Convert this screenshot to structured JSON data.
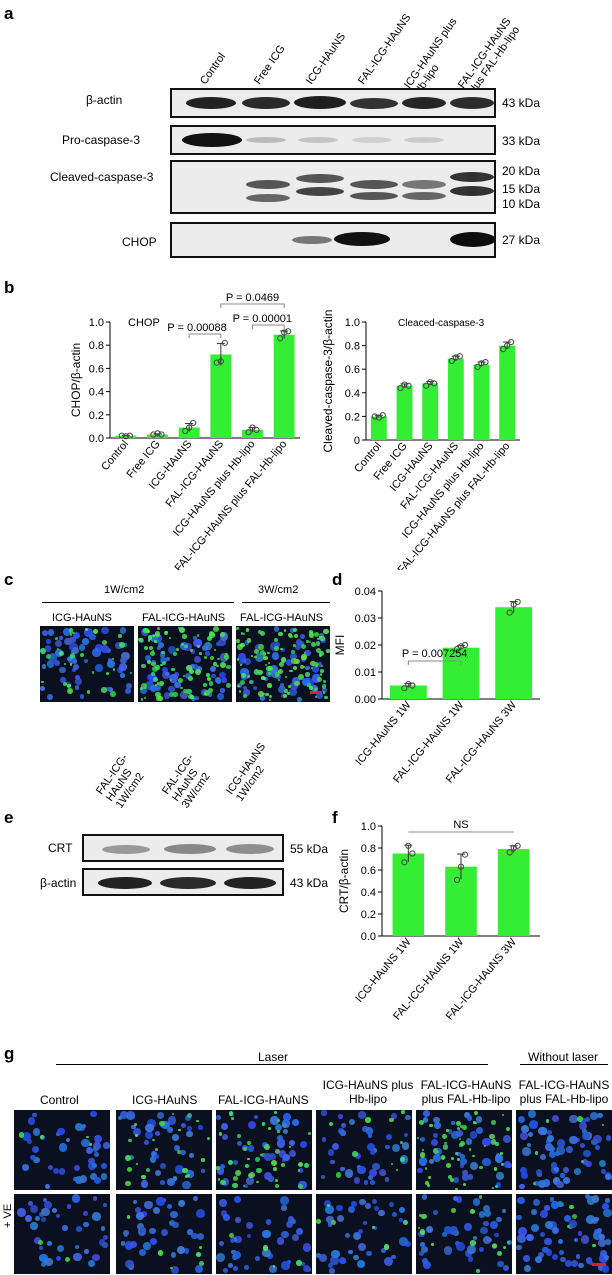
{
  "panel_labels": {
    "a": "a",
    "b": "b",
    "c": "c",
    "d": "d",
    "e": "e",
    "f": "f",
    "g": "g"
  },
  "panel_a": {
    "lanes": [
      "Control",
      "Free ICG",
      "ICG-HAuNS",
      "FAL-ICG-HAuNS",
      "ICG-HAuNS plus Hb-lipo",
      "FAL-ICG-HAuNS plus FAL-Hb-lipo"
    ],
    "rows": [
      {
        "name": "β-actin",
        "kda": [
          "43 kDa"
        ]
      },
      {
        "name": "Pro-caspase-3",
        "kda": [
          "33 kDa"
        ]
      },
      {
        "name": "Cleaved-caspase-3",
        "kda": [
          "20 kDa",
          "15 kDa",
          "10 kDa"
        ]
      },
      {
        "name": "CHOP",
        "kda": [
          "27 kDa"
        ]
      }
    ]
  },
  "chart_data": [
    {
      "id": "b-left",
      "type": "bar",
      "annotation": "CHOP",
      "categories": [
        "Control",
        "Free ICG",
        "ICG-HAuNS",
        "FAL-ICG-HAuNS",
        "ICG-HAuNS plus Hb-lipo",
        "FAL-ICG-HAuNS plus FAL-Hb-lipo"
      ],
      "values": [
        0.02,
        0.03,
        0.09,
        0.72,
        0.07,
        0.89
      ],
      "points": [
        [
          0.02,
          0.015,
          0.02
        ],
        [
          0.03,
          0.04,
          0.03
        ],
        [
          0.06,
          0.09,
          0.13
        ],
        [
          0.65,
          0.66,
          0.82
        ],
        [
          0.05,
          0.09,
          0.07
        ],
        [
          0.86,
          0.91,
          0.92
        ]
      ],
      "ylabel": "CHOP/β-actin",
      "ylim": [
        0,
        1.0
      ],
      "yticks": [
        "0.0",
        "0.2",
        "0.4",
        "0.6",
        "0.8",
        "1.0"
      ],
      "pvalues": [
        "P = 0.00088",
        "P = 0.00001",
        "P = 0.0469"
      ],
      "color": "#33ee33"
    },
    {
      "id": "b-right",
      "type": "bar",
      "annotation": "Cleaced-caspase-3",
      "categories": [
        "Control",
        "Free ICG",
        "ICG-HAuNS",
        "FAL-ICG-HAuNS",
        "ICG-HAuNS plus Hb-lipo",
        "FAL-ICG-HAuNS plus FAL-Hb-lipo"
      ],
      "values": [
        0.2,
        0.46,
        0.48,
        0.69,
        0.64,
        0.8
      ],
      "points": [
        [
          0.2,
          0.19,
          0.21
        ],
        [
          0.44,
          0.47,
          0.46
        ],
        [
          0.46,
          0.49,
          0.48
        ],
        [
          0.67,
          0.7,
          0.71
        ],
        [
          0.62,
          0.65,
          0.66
        ],
        [
          0.77,
          0.8,
          0.83
        ]
      ],
      "ylabel": "Cleaved-caspase-3/β-actin",
      "ylim": [
        0,
        1.0
      ],
      "yticks": [
        "0",
        "0.2",
        "0.4",
        "0.6",
        "0.8",
        "1.0"
      ],
      "color": "#33ee33"
    },
    {
      "id": "d",
      "type": "bar",
      "categories": [
        "ICG-HAuNS 1W",
        "FAL-ICG-HAuNS 1W",
        "FAL-ICG-HAuNS 3W"
      ],
      "values": [
        0.005,
        0.019,
        0.034
      ],
      "points": [
        [
          0.004,
          0.0055,
          0.005
        ],
        [
          0.0185,
          0.0195,
          0.02
        ],
        [
          0.032,
          0.035,
          0.036
        ]
      ],
      "ylabel": "MFI",
      "ylim": [
        0,
        0.04
      ],
      "yticks": [
        "0.00",
        "0.01",
        "0.02",
        "0.03",
        "0.04"
      ],
      "pvalues": [
        "P = 0.007254"
      ],
      "color": "#33ee33"
    },
    {
      "id": "f",
      "type": "bar",
      "categories": [
        "ICG-HAuNS 1W",
        "FAL-ICG-HAuNS 1W",
        "FAL-ICG-HAuNS 3W"
      ],
      "values": [
        0.75,
        0.63,
        0.79
      ],
      "points": [
        [
          0.67,
          0.82,
          0.75
        ],
        [
          0.51,
          0.63,
          0.74
        ],
        [
          0.76,
          0.8,
          0.82
        ]
      ],
      "ylabel": "CRT/β-actin",
      "ylim": [
        0,
        1.0
      ],
      "yticks": [
        "0.0",
        "0.2",
        "0.4",
        "0.6",
        "0.8",
        "1.0"
      ],
      "pvalues": [
        "NS"
      ],
      "color": "#33ee33"
    }
  ],
  "panel_c": {
    "group1": "1W/cm2",
    "group2": "3W/cm2",
    "images": [
      "ICG-HAuNS",
      "FAL-ICG-HAuNS",
      "FAL-ICG-HAuNS"
    ]
  },
  "panel_e": {
    "lanes": [
      "FAL-ICG-HAuNS 1W/cm2",
      "FAL-ICG-HAuNS 3W/cm2",
      "ICG-HAuNS 1W/cm2"
    ],
    "rows": [
      {
        "name": "CRT",
        "kda": "55 kDa"
      },
      {
        "name": "β-actin",
        "kda": "43 kDa"
      }
    ]
  },
  "panel_g": {
    "laser": "Laser",
    "without_laser": "Without laser",
    "columns": [
      "Control",
      "ICG-HAuNS",
      "FAL-ICG-HAuNS",
      "ICG-HAuNS plus Hb-lipo",
      "FAL-ICG-HAuNS plus FAL-Hb-lipo",
      "FAL-ICG-HAuNS plus FAL-Hb-lipo"
    ],
    "row2_label": "+ VE"
  }
}
